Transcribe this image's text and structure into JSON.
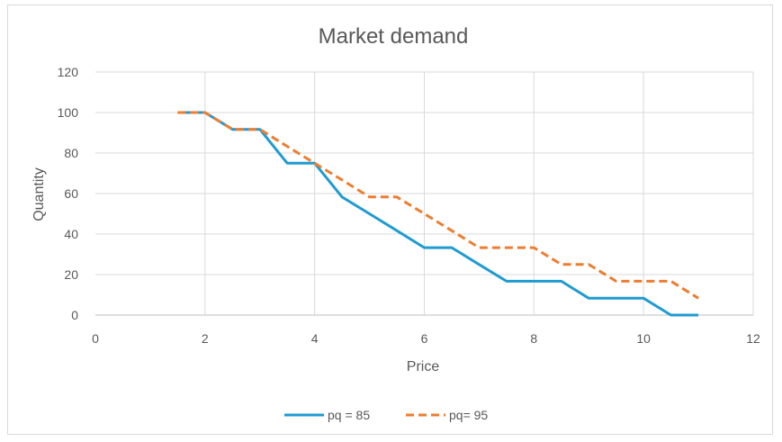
{
  "chart_data": {
    "type": "line",
    "title": "Market demand",
    "xlabel": "Price",
    "ylabel": "Quantity",
    "xlim": [
      0,
      12
    ],
    "ylim": [
      0,
      120
    ],
    "xticks": [
      "0",
      "2",
      "4",
      "6",
      "8",
      "10",
      "12"
    ],
    "yticks": [
      "0",
      "20",
      "40",
      "60",
      "80",
      "100",
      "120"
    ],
    "grid": true,
    "legend_position": "bottom",
    "series": [
      {
        "name": "pq = 85",
        "color": "#1f9bd1",
        "style": "solid",
        "x": [
          1.5,
          2,
          2.5,
          3,
          3.5,
          4,
          4.5,
          5,
          5.5,
          6,
          6.5,
          7,
          7.5,
          8,
          8.5,
          9,
          9.5,
          10,
          10.5,
          11
        ],
        "y": [
          100,
          100,
          91.7,
          91.7,
          75,
          75,
          58.3,
          50,
          41.7,
          33.3,
          33.3,
          25,
          16.7,
          16.7,
          16.7,
          8.3,
          8.3,
          8.3,
          0,
          0
        ]
      },
      {
        "name": "pq= 95",
        "color": "#ed7d31",
        "style": "dashed",
        "x": [
          1.5,
          2,
          2.5,
          3,
          3.5,
          4,
          4.5,
          5,
          5.5,
          6,
          6.5,
          7,
          7.5,
          8,
          8.5,
          9,
          9.5,
          10,
          10.5,
          11
        ],
        "y": [
          100,
          100,
          91.7,
          91.7,
          83.3,
          75,
          66.7,
          58.3,
          58.3,
          50,
          41.7,
          33.3,
          33.3,
          33.3,
          25,
          25,
          16.7,
          16.7,
          16.7,
          8.3
        ]
      }
    ]
  }
}
